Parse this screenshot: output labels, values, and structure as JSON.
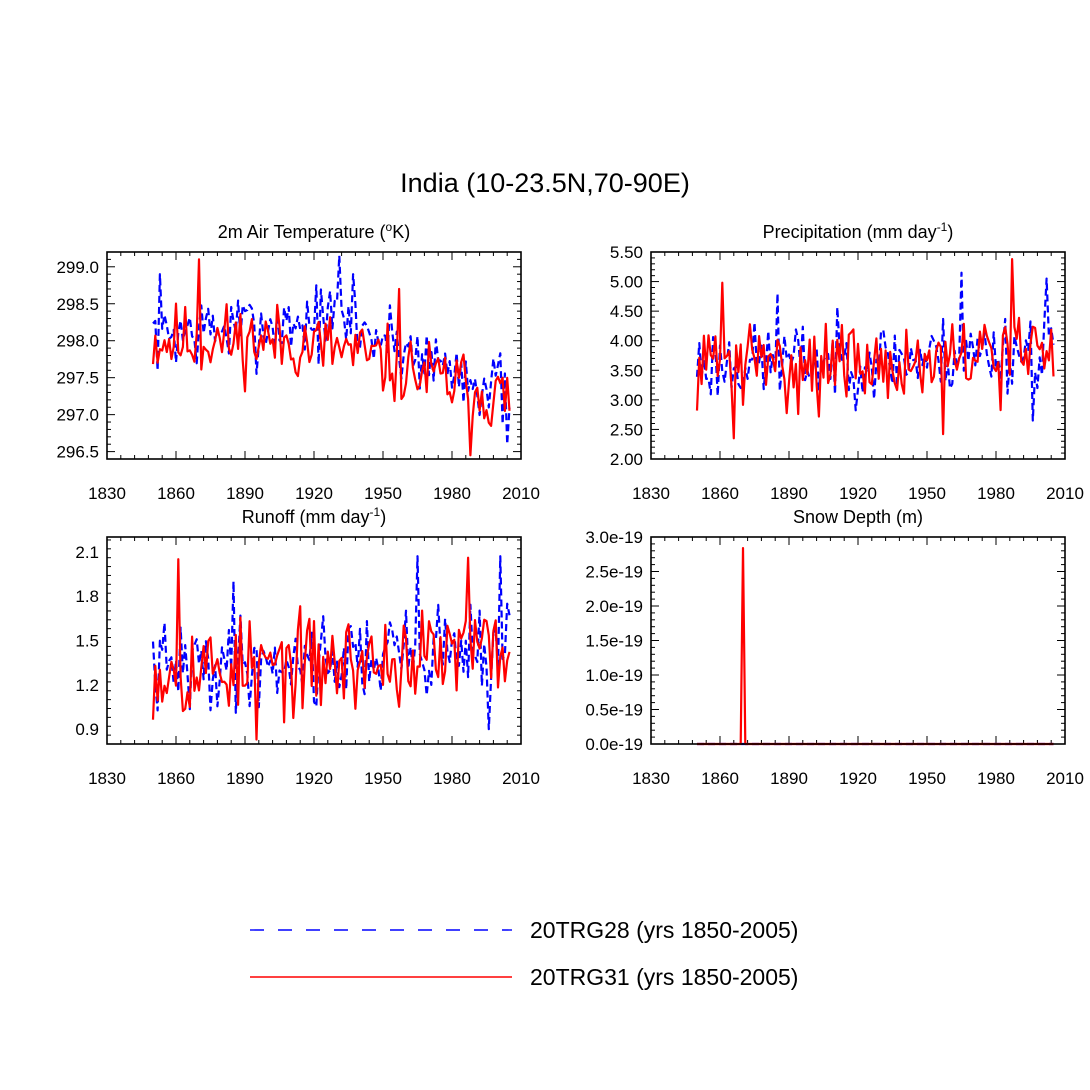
{
  "title": "India (10-23.5N,70-90E)",
  "colors": {
    "run_a": "#0000ff",
    "run_b": "#ff0000",
    "axis": "#000000",
    "background": "#ffffff"
  },
  "legend": [
    {
      "label": "20TRG28 (yrs 1850-2005)",
      "color": "#0000ff",
      "style": "dashed"
    },
    {
      "label": "20TRG31 (yrs 1850-2005)",
      "color": "#ff0000",
      "style": "solid"
    }
  ],
  "chart_data": [
    {
      "id": "temperature",
      "type": "line",
      "title_main": "2m Air Temperature (",
      "title_sup": "o",
      "title_tail": "K)",
      "xlim": [
        1830,
        2010
      ],
      "ylim": [
        296.4,
        299.2
      ],
      "xticks": [
        1830,
        1860,
        1890,
        1920,
        1950,
        1980,
        2010
      ],
      "xticklabels": [
        "1830",
        "1860",
        "1890",
        "1920",
        "1950",
        "1980",
        "2010"
      ],
      "yticks": [
        296.5,
        297.0,
        297.5,
        298.0,
        298.5,
        299.0
      ],
      "yticklabels": [
        "296.5",
        "297.0",
        "297.5",
        "298.0",
        "298.5",
        "299.0"
      ],
      "x_start": 1850,
      "x_step": 1,
      "series": [
        {
          "name": "20TRG28 (yrs 1850-2005)",
          "style": "dashed",
          "color": "#0000ff",
          "generator": {
            "seed": 7,
            "min": 296.5,
            "max": 299.2,
            "trend": [
              [
                1850,
                298.1
              ],
              [
                1900,
                298.2
              ],
              [
                1930,
                298.3
              ],
              [
                1960,
                297.9
              ],
              [
                2005,
                297.3
              ]
            ],
            "amp": 0.5,
            "spikes": [
              [
                1853,
                298.9
              ],
              [
                1931,
                299.15
              ],
              [
                1937,
                298.9
              ],
              [
                2004,
                296.6
              ]
            ]
          }
        },
        {
          "name": "20TRG31 (yrs 1850-2005)",
          "style": "solid",
          "color": "#ff0000",
          "generator": {
            "seed": 11,
            "min": 296.45,
            "max": 299.1,
            "trend": [
              [
                1850,
                298.0
              ],
              [
                1900,
                298.0
              ],
              [
                1930,
                297.9
              ],
              [
                1960,
                297.6
              ],
              [
                2005,
                297.2
              ]
            ],
            "amp": 0.5,
            "spikes": [
              [
                1870,
                299.1
              ],
              [
                1957,
                298.7
              ],
              [
                1988,
                296.45
              ]
            ]
          }
        }
      ]
    },
    {
      "id": "precipitation",
      "type": "line",
      "title_main": "Precipitation (mm day",
      "title_sup": "-1",
      "title_tail": ")",
      "xlim": [
        1830,
        2010
      ],
      "ylim": [
        2.0,
        5.5
      ],
      "xticks": [
        1830,
        1860,
        1890,
        1920,
        1950,
        1980,
        2010
      ],
      "xticklabels": [
        "1830",
        "1860",
        "1890",
        "1920",
        "1950",
        "1980",
        "2010"
      ],
      "yticks": [
        2.0,
        2.5,
        3.0,
        3.5,
        4.0,
        4.5,
        5.0,
        5.5
      ],
      "yticklabels": [
        "2.00",
        "2.50",
        "3.00",
        "3.50",
        "4.00",
        "4.50",
        "5.00",
        "5.50"
      ],
      "x_start": 1850,
      "x_step": 1,
      "series": [
        {
          "name": "20TRG28 (yrs 1850-2005)",
          "style": "dashed",
          "color": "#0000ff",
          "generator": {
            "seed": 23,
            "min": 2.6,
            "max": 5.2,
            "trend": [
              [
                1850,
                3.6
              ],
              [
                1950,
                3.7
              ],
              [
                2005,
                3.9
              ]
            ],
            "amp": 0.65,
            "spikes": [
              [
                1885,
                4.8
              ],
              [
                1965,
                5.15
              ],
              [
                1996,
                2.65
              ],
              [
                2002,
                5.05
              ]
            ]
          }
        },
        {
          "name": "20TRG31 (yrs 1850-2005)",
          "style": "solid",
          "color": "#ff0000",
          "generator": {
            "seed": 31,
            "min": 2.35,
            "max": 5.4,
            "trend": [
              [
                1850,
                3.6
              ],
              [
                1950,
                3.6
              ],
              [
                2005,
                3.9
              ]
            ],
            "amp": 0.7,
            "spikes": [
              [
                1861,
                4.98
              ],
              [
                1866,
                2.35
              ],
              [
                1957,
                2.42
              ],
              [
                1987,
                5.38
              ]
            ]
          }
        }
      ]
    },
    {
      "id": "runoff",
      "type": "line",
      "title_main": "Runoff (mm day",
      "title_sup": "-1",
      "title_tail": ")",
      "xlim": [
        1830,
        2010
      ],
      "ylim": [
        0.8,
        2.2
      ],
      "xticks": [
        1830,
        1860,
        1890,
        1920,
        1950,
        1980,
        2010
      ],
      "xticklabels": [
        "1830",
        "1860",
        "1890",
        "1920",
        "1950",
        "1980",
        "2010"
      ],
      "yticks": [
        0.9,
        1.2,
        1.5,
        1.8,
        2.1
      ],
      "yticklabels": [
        "0.9",
        "1.2",
        "1.5",
        "1.8",
        "2.1"
      ],
      "x_start": 1850,
      "x_step": 1,
      "series": [
        {
          "name": "20TRG28 (yrs 1850-2005)",
          "style": "dashed",
          "color": "#0000ff",
          "generator": {
            "seed": 41,
            "min": 0.9,
            "max": 2.07,
            "trend": [
              [
                1850,
                1.3
              ],
              [
                1950,
                1.4
              ],
              [
                2005,
                1.5
              ]
            ],
            "amp": 0.3,
            "spikes": [
              [
                1885,
                1.9
              ],
              [
                1965,
                2.07
              ],
              [
                2001,
                2.07
              ],
              [
                1996,
                0.9
              ]
            ]
          }
        },
        {
          "name": "20TRG31 (yrs 1850-2005)",
          "style": "solid",
          "color": "#ff0000",
          "generator": {
            "seed": 53,
            "min": 0.83,
            "max": 2.06,
            "trend": [
              [
                1850,
                1.3
              ],
              [
                1950,
                1.35
              ],
              [
                2005,
                1.45
              ]
            ],
            "amp": 0.32,
            "spikes": [
              [
                1861,
                2.05
              ],
              [
                1895,
                0.83
              ],
              [
                1987,
                2.06
              ]
            ]
          }
        }
      ]
    },
    {
      "id": "snow",
      "type": "line",
      "title_main": "Snow Depth (m)",
      "title_sup": "",
      "title_tail": "",
      "xlim": [
        1830,
        2010
      ],
      "ylim": [
        0,
        3e-19
      ],
      "xticks": [
        1830,
        1860,
        1890,
        1920,
        1950,
        1980,
        2010
      ],
      "xticklabels": [
        "1830",
        "1860",
        "1890",
        "1920",
        "1950",
        "1980",
        "2010"
      ],
      "yticks": [
        0,
        5e-20,
        1e-19,
        1.5e-19,
        2e-19,
        2.5e-19,
        3e-19
      ],
      "yticklabels": [
        "0.0e-19",
        "0.5e-19",
        "1.0e-19",
        "1.5e-19",
        "2.0e-19",
        "2.5e-19",
        "3.0e-19"
      ],
      "x_start": 1850,
      "x_step": 1,
      "series": [
        {
          "name": "20TRG28 (yrs 1850-2005)",
          "style": "dashed",
          "color": "#0000ff",
          "constant": 0,
          "count": 156
        },
        {
          "name": "20TRG31 (yrs 1850-2005)",
          "style": "solid",
          "color": "#ff0000",
          "constant": 0,
          "count": 156,
          "points": [
            [
              1869,
              0
            ],
            [
              1870,
              2.84e-19
            ],
            [
              1871,
              0
            ]
          ]
        }
      ]
    }
  ]
}
